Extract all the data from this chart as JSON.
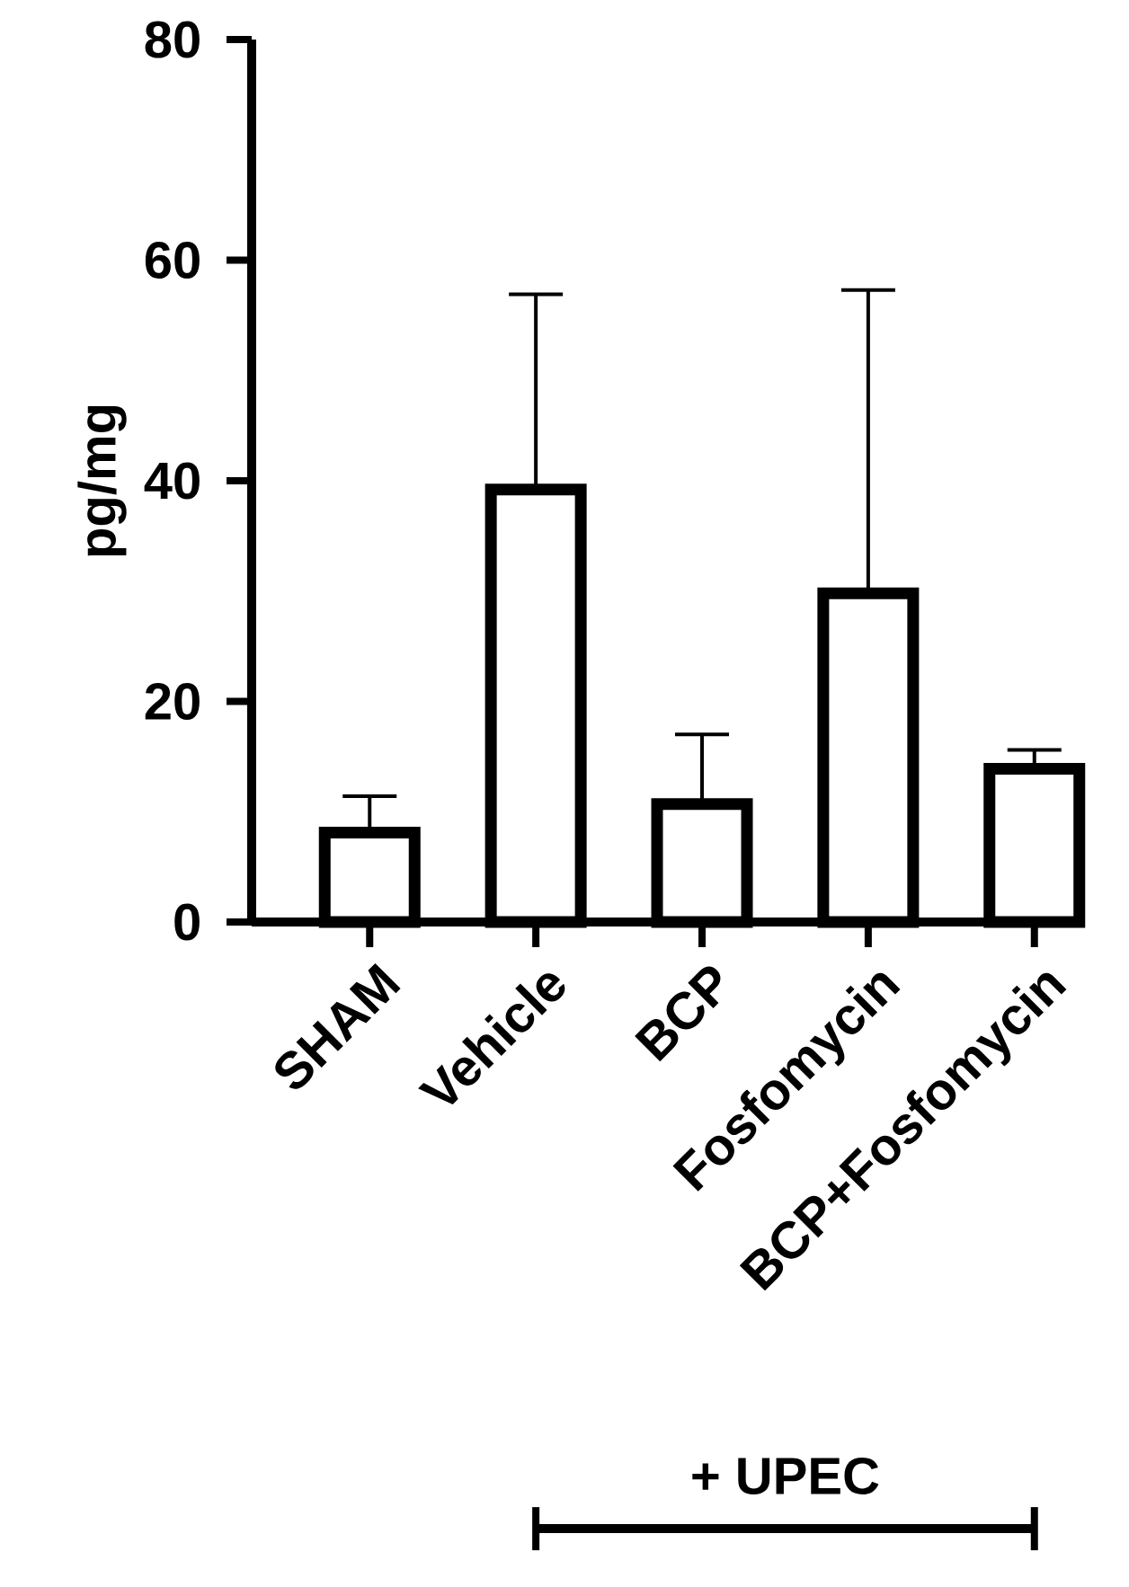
{
  "chart_data": {
    "type": "bar",
    "ylabel": "pg/mg",
    "categories": [
      "SHAM",
      "Vehicle",
      "BCP",
      "Fosfomycin",
      "BCP+Fosfomycin"
    ],
    "values": [
      8.1,
      39.2,
      10.7,
      29.8,
      13.9
    ],
    "errors": [
      [
        8.1,
        11.4
      ],
      [
        39.2,
        56.9
      ],
      [
        10.7,
        17.0
      ],
      [
        29.8,
        57.3
      ],
      [
        13.9,
        15.6
      ]
    ],
    "color": "#000000",
    "ylim": [
      0,
      80
    ],
    "yticks": [
      0,
      20,
      40,
      60,
      80
    ],
    "annotations": [
      "+ UPEC"
    ]
  }
}
